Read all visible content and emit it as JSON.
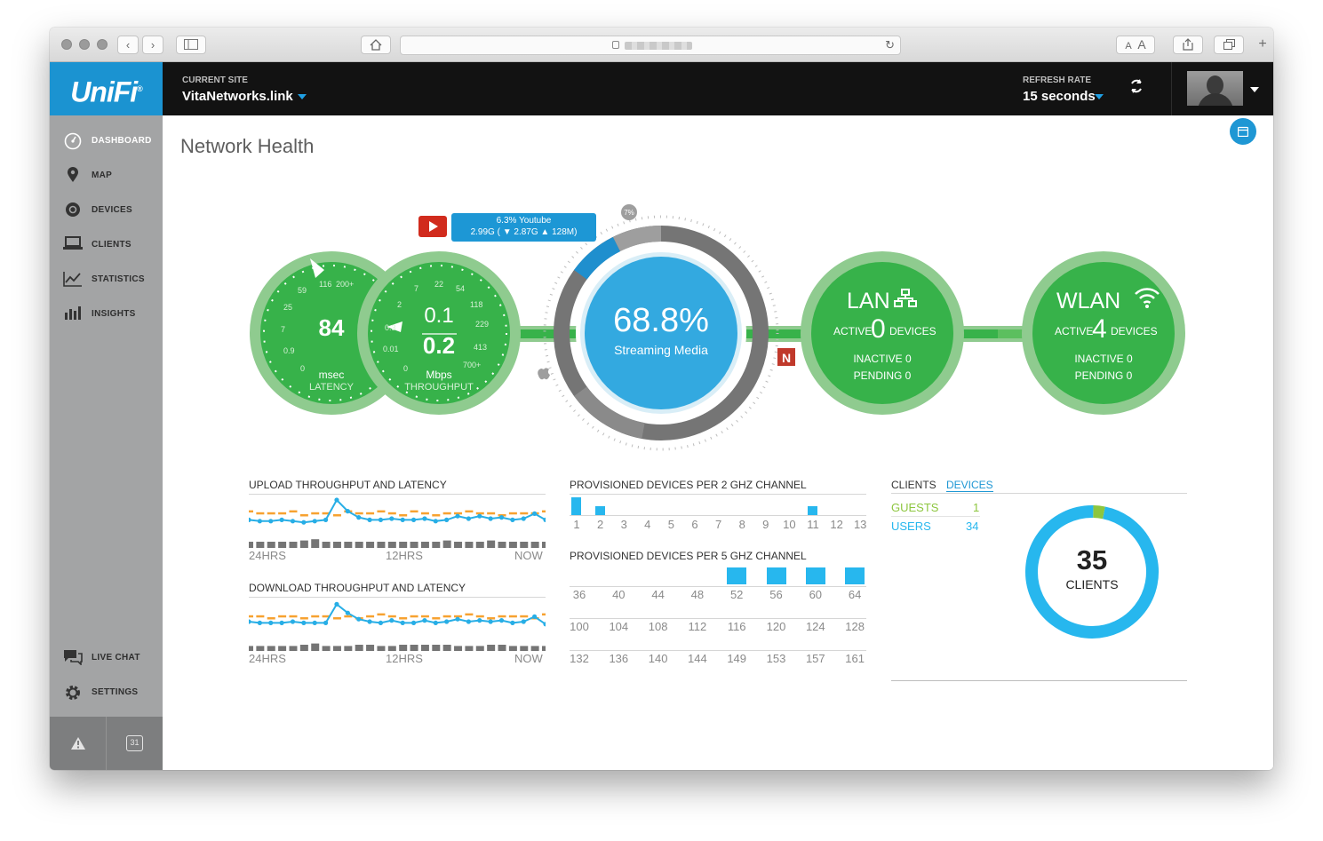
{
  "browser": {
    "nav_back": "‹",
    "nav_forward": "›",
    "home_icon": "home-icon",
    "text_small": "A",
    "text_large": "A",
    "new_tab": "+"
  },
  "header": {
    "logo": "UniFi",
    "logo_mark": "®",
    "current_site_label": "CURRENT SITE",
    "current_site": "VitaNetworks.link",
    "refresh_rate_label": "REFRESH RATE",
    "refresh_rate": "15 seconds"
  },
  "sidebar": {
    "items": [
      {
        "label": "DASHBOARD",
        "icon": "dashboard-icon",
        "active": true
      },
      {
        "label": "MAP",
        "icon": "map-pin-icon",
        "active": false
      },
      {
        "label": "DEVICES",
        "icon": "devices-icon",
        "active": false
      },
      {
        "label": "CLIENTS",
        "icon": "laptop-icon",
        "active": false
      },
      {
        "label": "STATISTICS",
        "icon": "line-chart-icon",
        "active": false
      },
      {
        "label": "INSIGHTS",
        "icon": "bar-chart-icon",
        "active": false
      }
    ],
    "bottom_items": [
      {
        "label": "LIVE CHAT",
        "icon": "chat-icon"
      },
      {
        "label": "SETTINGS",
        "icon": "gear-icon"
      }
    ],
    "alert_icon": "warning-icon",
    "calendar_day": "31"
  },
  "main": {
    "title": "Network Health"
  },
  "health": {
    "latency": {
      "value": "84",
      "unit": "msec",
      "label": "LATENCY",
      "ticks": [
        "0",
        "0.9",
        "7",
        "25",
        "59",
        "116",
        "200+"
      ]
    },
    "throughput": {
      "up": "0.1",
      "down": "0.2",
      "unit": "Mbps",
      "label": "THROUGHPUT",
      "ticks": [
        "0",
        "0.01",
        "0.3",
        "2",
        "7",
        "22",
        "54",
        "118",
        "229",
        "413",
        "700+"
      ]
    },
    "streaming": {
      "percent": "68.8%",
      "label": "Streaming Media",
      "small_badge": "7%",
      "ring_fraction": 0.688,
      "youtube_fraction": 0.063
    },
    "youtube_tip": {
      "line1": "6.3% Youtube",
      "line2": "2.99G ( ▼ 2.87G ▲ 128M)"
    },
    "lan": {
      "title": "LAN",
      "active_prefix": "ACTIVE",
      "active_count": "0",
      "active_suffix": "DEVICES",
      "inactive": "INACTIVE 0",
      "pending": "PENDING 0"
    },
    "wlan": {
      "title": "WLAN",
      "active_prefix": "ACTIVE",
      "active_count": "4",
      "active_suffix": "DEVICES",
      "inactive": "INACTIVE 0",
      "pending": "PENDING 0"
    },
    "colors": {
      "green": "#37b24a",
      "green_light": "#8fcb8f",
      "blue": "#33a9e0",
      "gray": "#757575"
    }
  },
  "upload_chart": {
    "title": "UPLOAD THROUGHPUT AND LATENCY",
    "x_labels": [
      "24HRS",
      "12HRS",
      "NOW"
    ]
  },
  "download_chart": {
    "title": "DOWNLOAD THROUGHPUT AND LATENCY",
    "x_labels": [
      "24HRS",
      "12HRS",
      "NOW"
    ]
  },
  "channels_2g": {
    "title": "PROVISIONED DEVICES PER 2 GHZ CHANNEL",
    "channels": [
      "1",
      "2",
      "3",
      "4",
      "5",
      "6",
      "7",
      "8",
      "9",
      "10",
      "11",
      "12",
      "13"
    ],
    "devices": [
      2,
      1,
      0,
      0,
      0,
      0,
      0,
      0,
      0,
      0,
      1,
      0,
      0
    ]
  },
  "channels_5g": {
    "title": "PROVISIONED DEVICES PER 5 GHZ CHANNEL",
    "rows": [
      [
        "36",
        "40",
        "44",
        "48",
        "52",
        "56",
        "60",
        "64"
      ],
      [
        "100",
        "104",
        "108",
        "112",
        "116",
        "120",
        "124",
        "128"
      ],
      [
        "132",
        "136",
        "140",
        "144",
        "149",
        "153",
        "157",
        "161"
      ]
    ],
    "devices_row1": [
      0,
      0,
      0,
      0,
      1,
      1,
      1,
      1
    ]
  },
  "clients": {
    "tab_clients": "CLIENTS",
    "tab_devices": "DEVICES",
    "guests_label": "GUESTS",
    "guests_value": "1",
    "users_label": "USERS",
    "users_value": "34",
    "total": "35",
    "total_label": "CLIENTS",
    "guest_color": "#8dc63f",
    "user_color": "#27b7ee"
  },
  "chart_data": [
    {
      "type": "line",
      "title": "UPLOAD THROUGHPUT AND LATENCY",
      "x_labels": [
        "24HRS",
        "12HRS",
        "NOW"
      ],
      "series": [],
      "throughput": [
        0.2,
        0.15,
        0.15,
        0.2,
        0.15,
        0.1,
        0.15,
        0.2,
        1.0,
        0.55,
        0.3,
        0.2,
        0.2,
        0.25,
        0.2,
        0.2,
        0.25,
        0.15,
        0.2,
        0.35,
        0.25,
        0.35,
        0.25,
        0.3,
        0.2,
        0.25,
        0.45,
        0.2
      ],
      "latency": [
        0.6,
        0.55,
        0.55,
        0.55,
        0.6,
        0.5,
        0.55,
        0.55,
        0.5,
        0.6,
        0.55,
        0.55,
        0.6,
        0.55,
        0.5,
        0.6,
        0.55,
        0.5,
        0.55,
        0.55,
        0.6,
        0.55,
        0.55,
        0.5,
        0.55,
        0.55,
        0.55,
        0.6
      ],
      "activity": [
        0.5,
        0.5,
        0.5,
        0.5,
        0.5,
        0.6,
        0.7,
        0.5,
        0.5,
        0.5,
        0.5,
        0.5,
        0.5,
        0.5,
        0.5,
        0.5,
        0.5,
        0.5,
        0.6,
        0.5,
        0.5,
        0.5,
        0.6,
        0.5,
        0.5,
        0.5,
        0.5,
        0.5
      ]
    },
    {
      "type": "line",
      "title": "DOWNLOAD THROUGHPUT AND LATENCY",
      "x_labels": [
        "24HRS",
        "12HRS",
        "NOW"
      ],
      "series": [],
      "throughput": [
        0.25,
        0.2,
        0.2,
        0.2,
        0.25,
        0.2,
        0.2,
        0.2,
        0.95,
        0.6,
        0.35,
        0.25,
        0.2,
        0.3,
        0.2,
        0.2,
        0.3,
        0.2,
        0.25,
        0.35,
        0.25,
        0.3,
        0.25,
        0.3,
        0.2,
        0.25,
        0.45,
        0.15
      ],
      "latency": [
        0.55,
        0.55,
        0.5,
        0.55,
        0.55,
        0.5,
        0.55,
        0.55,
        0.5,
        0.55,
        0.5,
        0.55,
        0.6,
        0.55,
        0.5,
        0.55,
        0.55,
        0.5,
        0.55,
        0.55,
        0.6,
        0.55,
        0.5,
        0.55,
        0.55,
        0.55,
        0.5,
        0.6
      ],
      "activity": [
        0.4,
        0.4,
        0.4,
        0.4,
        0.4,
        0.5,
        0.6,
        0.4,
        0.4,
        0.4,
        0.5,
        0.5,
        0.4,
        0.4,
        0.5,
        0.5,
        0.5,
        0.5,
        0.5,
        0.4,
        0.4,
        0.4,
        0.5,
        0.5,
        0.4,
        0.4,
        0.4,
        0.4
      ]
    },
    {
      "type": "bar",
      "title": "PROVISIONED DEVICES PER 2 GHZ CHANNEL",
      "categories": [
        "1",
        "2",
        "3",
        "4",
        "5",
        "6",
        "7",
        "8",
        "9",
        "10",
        "11",
        "12",
        "13"
      ],
      "values": [
        2,
        1,
        0,
        0,
        0,
        0,
        0,
        0,
        0,
        0,
        1,
        0,
        0
      ]
    },
    {
      "type": "bar",
      "title": "PROVISIONED DEVICES PER 5 GHZ CHANNEL",
      "categories": [
        "36",
        "40",
        "44",
        "48",
        "52",
        "56",
        "60",
        "64",
        "100",
        "104",
        "108",
        "112",
        "116",
        "120",
        "124",
        "128",
        "132",
        "136",
        "140",
        "144",
        "149",
        "153",
        "157",
        "161"
      ],
      "values": [
        0,
        0,
        0,
        0,
        1,
        1,
        1,
        1,
        0,
        0,
        0,
        0,
        0,
        0,
        0,
        0,
        0,
        0,
        0,
        0,
        0,
        0,
        0,
        0
      ]
    },
    {
      "type": "pie",
      "title": "",
      "categories": [
        "GUESTS",
        "USERS"
      ],
      "values": [
        1,
        34
      ],
      "center_label": "35 CLIENTS"
    }
  ]
}
